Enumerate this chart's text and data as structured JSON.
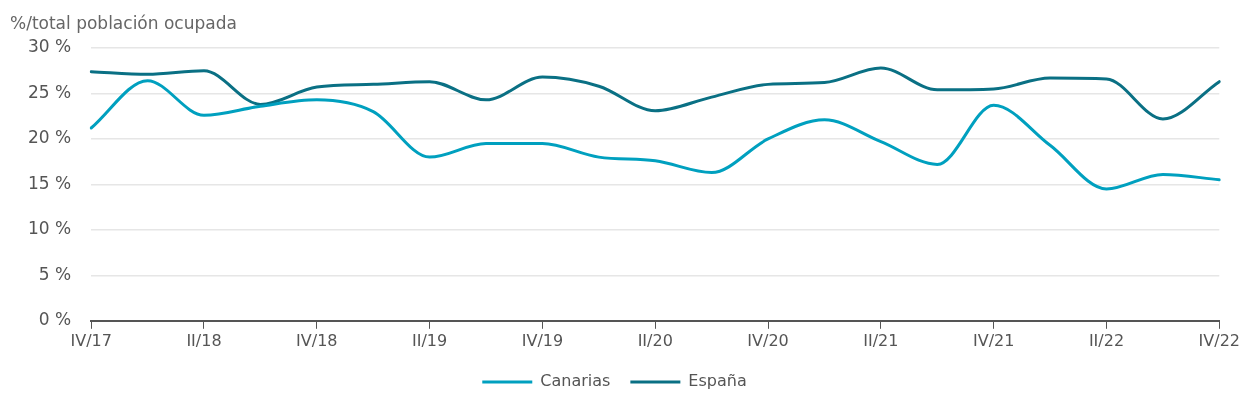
{
  "chart_data": {
    "type": "line",
    "ylabel": "%/total población ocupada",
    "categories": [
      "IV/17",
      null,
      "II/18",
      null,
      "IV/18",
      null,
      "II/19",
      null,
      "IV/19",
      null,
      "II/20",
      null,
      "IV/20",
      null,
      "II/21",
      null,
      "IV/21",
      null,
      "II/22",
      null,
      "IV/22"
    ],
    "series": [
      {
        "name": "Canarias",
        "color": "#00a0bf",
        "values": [
          21.2,
          26.4,
          22.6,
          23.6,
          24.3,
          23.0,
          18.0,
          19.5,
          19.5,
          18.0,
          17.6,
          16.3,
          20.0,
          22.1,
          19.7,
          17.2,
          23.7,
          19.3,
          14.5,
          16.1,
          15.5
        ]
      },
      {
        "name": "España",
        "color": "#0a7084",
        "values": [
          27.4,
          27.1,
          27.5,
          23.8,
          25.7,
          26.0,
          26.3,
          24.3,
          26.8,
          25.8,
          23.1,
          24.6,
          26.0,
          26.2,
          27.8,
          25.4,
          25.5,
          26.7,
          26.6,
          22.2,
          26.3
        ]
      }
    ],
    "ylim": [
      0,
      30
    ],
    "yticks": [
      {
        "value": 0,
        "label": "0 %"
      },
      {
        "value": 5,
        "label": "5 %"
      },
      {
        "value": 10,
        "label": "10 %"
      },
      {
        "value": 15,
        "label": "15 %"
      },
      {
        "value": 20,
        "label": "20 %"
      },
      {
        "value": 25,
        "label": "25 %"
      },
      {
        "value": 30,
        "label": "30 %"
      }
    ],
    "grid": "y",
    "legend": "bottom",
    "marker": "none",
    "line_style": "solid"
  }
}
